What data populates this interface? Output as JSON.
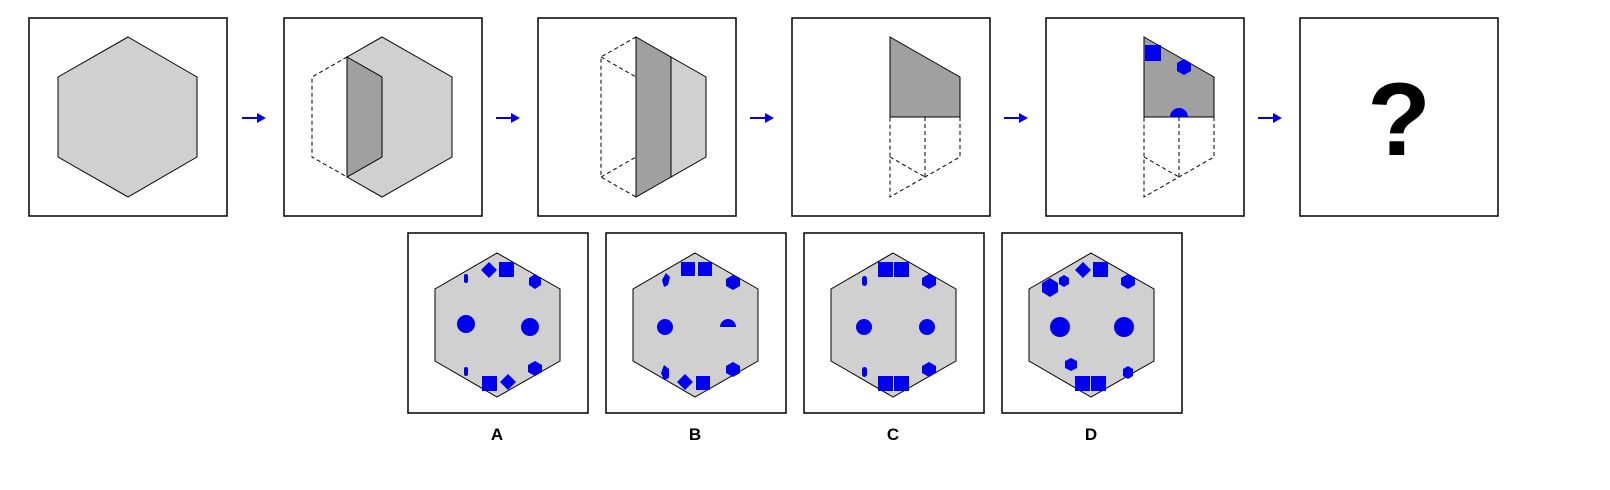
{
  "question_mark": "?",
  "options": [
    {
      "label": "A"
    },
    {
      "label": "B"
    },
    {
      "label": "C"
    },
    {
      "label": "D"
    }
  ],
  "colors": {
    "paper": "#d0d0d0",
    "folded": "#a0a0a0",
    "holes": "#0000ee",
    "arrows": "#0000ee"
  }
}
